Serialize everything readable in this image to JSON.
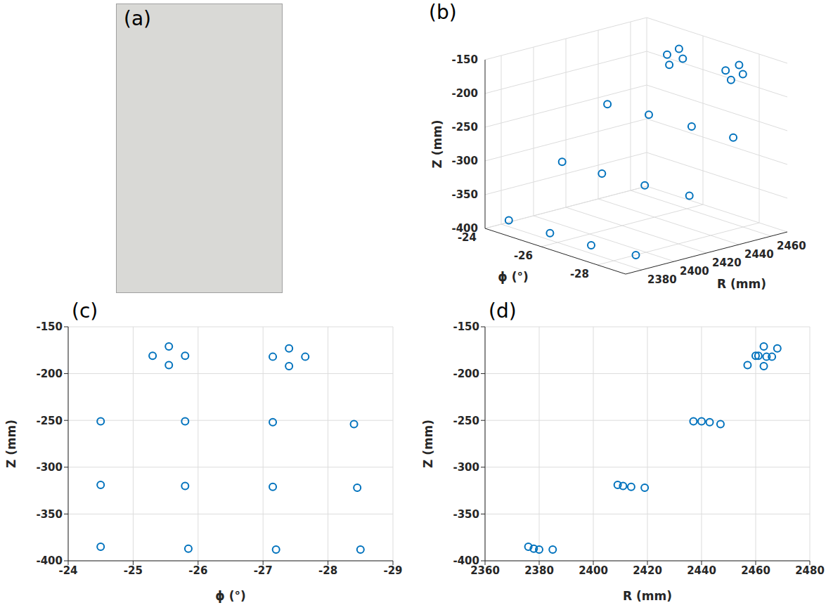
{
  "photo": {
    "label": "(a)"
  },
  "chart_data": [
    {
      "type": "scatter3d",
      "title": "(b)",
      "x_label": "ϕ (°)",
      "y_label": "R (mm)",
      "z_label": "Z (mm)",
      "x": [
        -25.3,
        -25.55,
        -25.8,
        -25.55,
        -27.15,
        -27.4,
        -27.65,
        -27.4,
        -24.5,
        -25.8,
        -27.15,
        -28.4,
        -24.5,
        -25.8,
        -27.15,
        -28.45,
        -24.5,
        -25.85,
        -27.2,
        -28.5
      ],
      "y": [
        2460,
        2463,
        2461,
        2457,
        2464,
        2468,
        2466,
        2463,
        2437,
        2440,
        2443,
        2447,
        2409,
        2411,
        2414,
        2419,
        2376,
        2378,
        2380,
        2385
      ],
      "z": [
        -181,
        -171,
        -181,
        -191,
        -182,
        -173,
        -182,
        -192,
        -251,
        -251,
        -252,
        -254,
        -319,
        -320,
        -321,
        -322,
        -385,
        -387,
        -388,
        -388
      ],
      "xlim": [
        -24,
        -29
      ],
      "xticks": [
        -24,
        -26,
        -28
      ],
      "ylim": [
        2370,
        2470
      ],
      "yticks": [
        2380,
        2400,
        2420,
        2440,
        2460
      ],
      "zlim": [
        -400,
        -150
      ],
      "zticks": [
        -400,
        -350,
        -300,
        -250,
        -200,
        -150
      ],
      "color": "#0072bd",
      "marker": "circle_open",
      "grid": true
    },
    {
      "type": "scatter",
      "title": "(c)",
      "x_label": "ϕ (°)",
      "y_label": "Z (mm)",
      "x": [
        -25.3,
        -25.55,
        -25.8,
        -25.55,
        -27.15,
        -27.4,
        -27.65,
        -27.4,
        -24.5,
        -25.8,
        -27.15,
        -28.4,
        -24.5,
        -25.8,
        -27.15,
        -28.45,
        -24.5,
        -25.85,
        -27.2,
        -28.5
      ],
      "values": [
        -181,
        -171,
        -181,
        -191,
        -182,
        -173,
        -182,
        -192,
        -251,
        -251,
        -252,
        -254,
        -319,
        -320,
        -321,
        -322,
        -385,
        -387,
        -388,
        -388
      ],
      "xlim": [
        -24,
        -29
      ],
      "xticks": [
        -24,
        -25,
        -26,
        -27,
        -28,
        -29
      ],
      "ylim": [
        -400,
        -150
      ],
      "yticks": [
        -400,
        -350,
        -300,
        -250,
        -200,
        -150
      ],
      "color": "#0072bd",
      "marker": "circle_open",
      "grid": true
    },
    {
      "type": "scatter",
      "title": "(d)",
      "x_label": "R (mm)",
      "y_label": "Z (mm)",
      "x": [
        2460,
        2463,
        2461,
        2457,
        2464,
        2468,
        2466,
        2463,
        2437,
        2440,
        2443,
        2447,
        2409,
        2411,
        2414,
        2419,
        2376,
        2378,
        2380,
        2385
      ],
      "values": [
        -181,
        -171,
        -181,
        -191,
        -182,
        -173,
        -182,
        -192,
        -251,
        -251,
        -252,
        -254,
        -319,
        -320,
        -321,
        -322,
        -385,
        -387,
        -388,
        -388
      ],
      "xlim": [
        2360,
        2480
      ],
      "xticks": [
        2360,
        2380,
        2400,
        2420,
        2440,
        2460,
        2480
      ],
      "ylim": [
        -400,
        -150
      ],
      "yticks": [
        -400,
        -350,
        -300,
        -250,
        -200,
        -150
      ],
      "color": "#0072bd",
      "marker": "circle_open",
      "grid": true
    }
  ]
}
